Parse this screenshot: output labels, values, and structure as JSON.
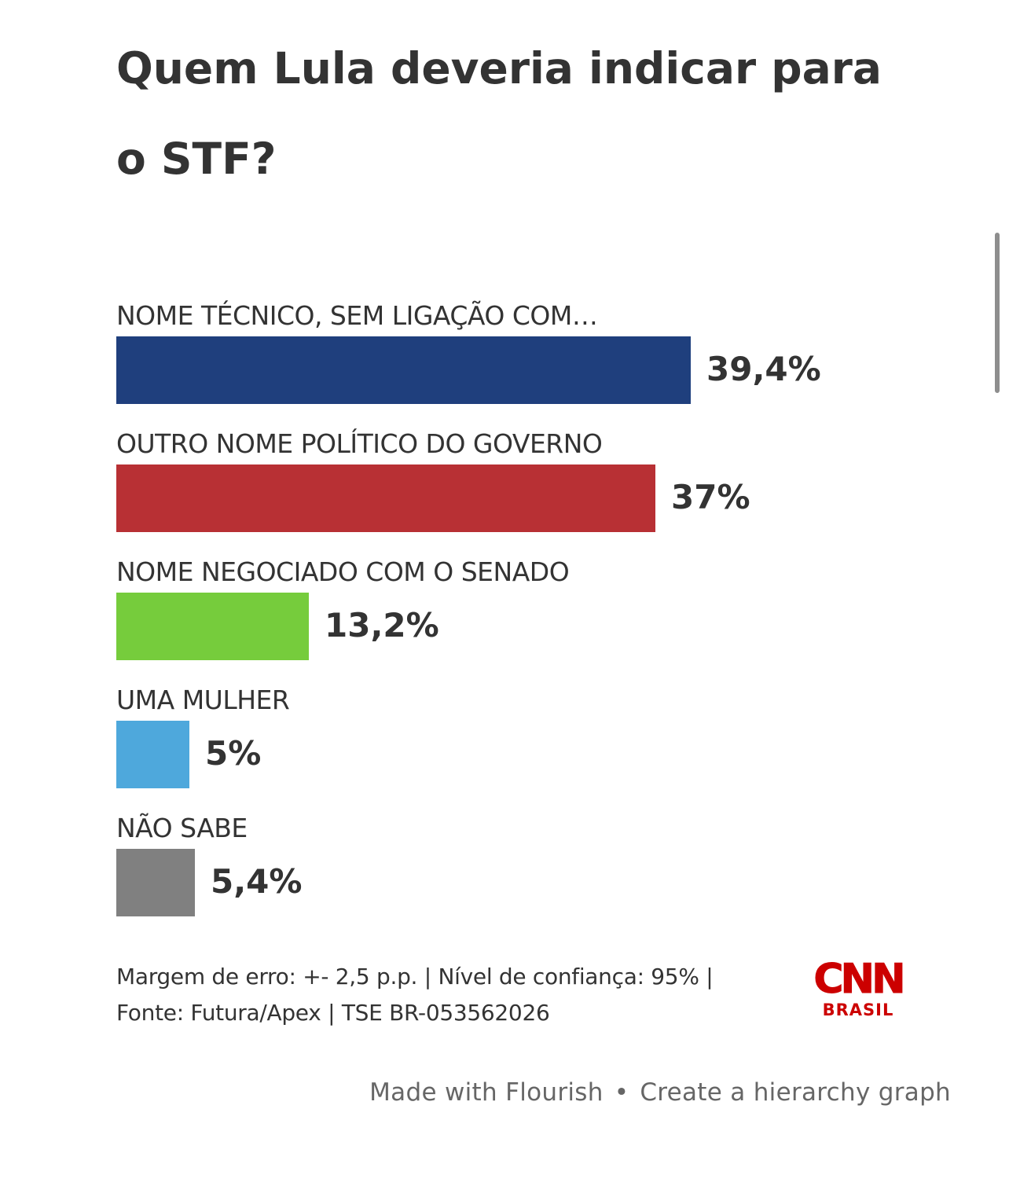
{
  "title": "Quem Lula deveria indicar para o STF?",
  "chart_data": {
    "type": "bar",
    "orientation": "horizontal",
    "title": "Quem Lula deveria indicar para o STF?",
    "categories": [
      "NOME TÉCNICO, SEM LIGAÇÃO COM…",
      "OUTRO NOME POLÍTICO DO GOVERNO",
      "NOME NEGOCIADO COM O SENADO",
      "UMA MULHER",
      "NÃO SABE"
    ],
    "values": [
      39.4,
      37,
      13.2,
      5,
      5.4
    ],
    "value_labels": [
      "39,4%",
      "37%",
      "13,2%",
      "5%",
      "5,4%"
    ],
    "colors": [
      "#1f3f7d",
      "#b83034",
      "#76cc3c",
      "#4ea8dc",
      "#808080"
    ],
    "unit": "%",
    "xlim": [
      0,
      39.4
    ],
    "grid": false,
    "legend": "none"
  },
  "footnote": {
    "line1": "Margem de erro: +- 2,5 p.p. | Nível de confiança: 95% |",
    "line2": "Fonte: Futura/Apex | TSE BR-053562026"
  },
  "logo": {
    "name": "CNN",
    "subtitle": "BRASIL",
    "color": "#cc0000"
  },
  "attribution": {
    "made_with": "Made with Flourish",
    "separator": "•",
    "create_link": "Create a hierarchy graph"
  }
}
